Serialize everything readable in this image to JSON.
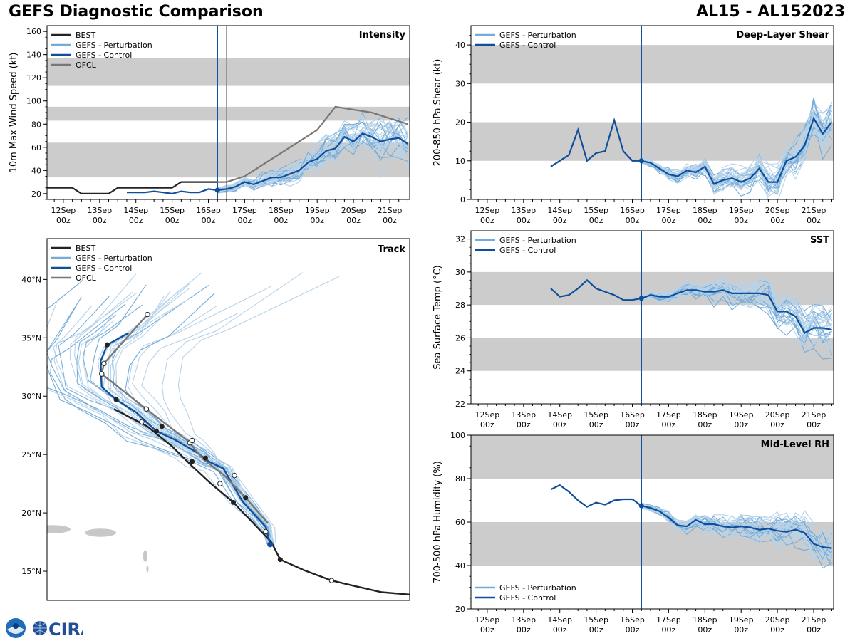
{
  "title": "GEFS Diagnostic Comparison",
  "storm": "AL15 - AL152023",
  "logo_text": "CIRA",
  "colors": {
    "best": "#222222",
    "perturbation": "#74acd9",
    "perturbation_light": "#b7d3ea",
    "control": "#0f4f9a",
    "ofcl": "#777777",
    "band": "#cccccc",
    "analysis_line": "#0f4f9a",
    "ofcl_line": "#888888"
  },
  "time_axis": {
    "labels": [
      "12Sep\n00z",
      "13Sep\n00z",
      "14Sep\n00z",
      "15Sep\n00z",
      "16Sep\n00z",
      "17Sep\n00z",
      "18Sep\n00z",
      "19Sep\n00z",
      "20Sep\n00z",
      "21Sep\n00z"
    ],
    "range_days": [
      11.55,
      21.55
    ],
    "analysis_time": 16.25
  },
  "chart_data": [
    {
      "id": "intensity",
      "type": "line",
      "panel_title": "Intensity",
      "ylabel": "10m Max Wind Speed (kt)",
      "ylim": [
        15,
        165
      ],
      "yticks": [
        20,
        40,
        60,
        80,
        100,
        120,
        140,
        160
      ],
      "bands": [
        [
          34,
          64
        ],
        [
          83,
          95
        ],
        [
          113,
          137
        ]
      ],
      "ofcl_time_line": 16.5,
      "legend": [
        "BEST",
        "GEFS - Perturbation",
        "GEFS - Control",
        "OFCL"
      ],
      "series": [
        {
          "name": "BEST",
          "t": [
            11.55,
            12,
            12.25,
            12.5,
            12.75,
            13,
            13.25,
            13.5,
            13.75,
            14,
            14.25,
            14.5,
            14.75,
            15,
            15.25,
            15.5,
            15.75,
            16,
            16.25
          ],
          "v": [
            25,
            25,
            25,
            20,
            20,
            20,
            20,
            25,
            25,
            25,
            25,
            25,
            25,
            25,
            30,
            30,
            30,
            30,
            30
          ]
        },
        {
          "name": "GEFS - Control",
          "t": [
            13.75,
            14,
            14.25,
            14.5,
            14.75,
            15,
            15.25,
            15.5,
            15.75,
            16,
            16.25,
            16.5,
            16.75,
            17,
            17.25,
            17.5,
            17.75,
            18,
            18.25,
            18.5,
            18.75,
            19,
            19.25,
            19.5,
            19.75,
            20,
            20.25,
            20.5,
            20.75,
            21,
            21.25,
            21.5
          ],
          "v": [
            21,
            21,
            21,
            22,
            21,
            20,
            22,
            21,
            21,
            24,
            23,
            24,
            26,
            30,
            28,
            31,
            34,
            34,
            37,
            40,
            47,
            50,
            57,
            59,
            69,
            65,
            72,
            69,
            65,
            67,
            68,
            63
          ]
        },
        {
          "name": "OFCL",
          "t": [
            16.25,
            16.5,
            17,
            17.5,
            18,
            18.5,
            19,
            19.5,
            20.5,
            21.5
          ],
          "v": [
            30,
            30,
            35,
            45,
            55,
            65,
            75,
            95,
            90,
            80
          ]
        }
      ]
    },
    {
      "id": "shear",
      "type": "line",
      "panel_title": "Deep-Layer Shear",
      "ylabel": "200-850 hPa Shear (kt)",
      "ylim": [
        0,
        45
      ],
      "yticks": [
        0,
        10,
        20,
        30,
        40
      ],
      "bands": [
        [
          10,
          20
        ],
        [
          30,
          40
        ]
      ],
      "legend": [
        "GEFS - Perturbation",
        "GEFS - Control"
      ],
      "series": [
        {
          "name": "GEFS - Control",
          "t": [
            13.75,
            14,
            14.25,
            14.5,
            14.75,
            15,
            15.25,
            15.5,
            15.75,
            16,
            16.25,
            16.5,
            16.75,
            17,
            17.25,
            17.5,
            17.75,
            18,
            18.25,
            18.5,
            18.75,
            19,
            19.25,
            19.5,
            19.75,
            20,
            20.25,
            20.5,
            20.75,
            21,
            21.25,
            21.5
          ],
          "v": [
            8.5,
            10,
            11.5,
            18,
            10,
            12,
            12.5,
            20.5,
            12.5,
            10,
            10,
            9.5,
            8,
            6.5,
            6,
            7.5,
            7,
            8.5,
            4,
            5,
            5.5,
            4.5,
            5.5,
            8,
            4.5,
            4.5,
            10,
            11,
            14,
            21,
            17,
            20
          ]
        }
      ]
    },
    {
      "id": "sst",
      "type": "line",
      "panel_title": "SST",
      "ylabel": "Sea Surface Temp (°C)",
      "ylim": [
        22,
        32.5
      ],
      "yticks": [
        22,
        24,
        26,
        28,
        30,
        32
      ],
      "bands": [
        [
          24,
          26
        ],
        [
          28,
          30
        ]
      ],
      "legend": [
        "GEFS - Perturbation",
        "GEFS - Control"
      ],
      "series": [
        {
          "name": "GEFS - Control",
          "t": [
            13.75,
            14,
            14.25,
            14.5,
            14.75,
            15,
            15.25,
            15.5,
            15.75,
            16,
            16.25,
            16.5,
            16.75,
            17,
            17.25,
            17.5,
            17.75,
            18,
            18.25,
            18.5,
            18.75,
            19,
            19.25,
            19.5,
            19.75,
            20,
            20.25,
            20.5,
            20.75,
            21,
            21.25,
            21.5
          ],
          "v": [
            29,
            28.5,
            28.6,
            29,
            29.5,
            29,
            28.8,
            28.6,
            28.3,
            28.3,
            28.4,
            28.6,
            28.5,
            28.5,
            28.7,
            28.9,
            28.9,
            28.8,
            28.8,
            28.9,
            28.7,
            28.7,
            28.7,
            28.7,
            28.6,
            27.6,
            27.6,
            27.3,
            26.3,
            26.6,
            26.6,
            26.5
          ]
        }
      ]
    },
    {
      "id": "rh",
      "type": "line",
      "panel_title": "Mid-Level RH",
      "ylabel": "700-500 hPa Humidity (%)",
      "ylim": [
        20,
        100
      ],
      "yticks": [
        20,
        40,
        60,
        80,
        100
      ],
      "bands": [
        [
          40,
          60
        ],
        [
          80,
          100
        ]
      ],
      "legend": [
        "GEFS - Perturbation",
        "GEFS - Control"
      ],
      "series": [
        {
          "name": "GEFS - Control",
          "t": [
            13.75,
            14,
            14.25,
            14.5,
            14.75,
            15,
            15.25,
            15.5,
            15.75,
            16,
            16.25,
            16.5,
            16.75,
            17,
            17.25,
            17.5,
            17.75,
            18,
            18.25,
            18.5,
            18.75,
            19,
            19.25,
            19.5,
            19.75,
            20,
            20.25,
            20.5,
            20.75,
            21,
            21.25,
            21.5
          ],
          "v": [
            75,
            77,
            74,
            70,
            67,
            69,
            68,
            70,
            70.5,
            70.5,
            67.5,
            66.5,
            65,
            62,
            58.5,
            58,
            61,
            59,
            59,
            58,
            57.5,
            58,
            57.5,
            56.5,
            57,
            56,
            55.5,
            56.5,
            55,
            50,
            48.5,
            48
          ]
        }
      ]
    },
    {
      "id": "track",
      "type": "line",
      "panel_title": "Track",
      "lat_range": [
        12.5,
        43.5
      ],
      "lon_range": [
        -78.0,
        -45.5
      ],
      "lat_ticks": [
        15,
        20,
        25,
        30,
        35,
        40
      ],
      "lat_labels": [
        "15°N",
        "20°N",
        "25°N",
        "30°N",
        "35°N",
        "40°N"
      ],
      "legend": [
        "BEST",
        "GEFS - Perturbation",
        "GEFS - Control",
        "OFCL"
      ],
      "series": [
        {
          "name": "BEST",
          "lat": [
            13.0,
            13.2,
            13.7,
            14.2,
            15.1,
            16.0,
            17.5,
            19.1,
            20.9,
            22.5,
            24.0,
            25.7,
            27.4,
            28.9
          ],
          "lon": [
            -45.5,
            -48.0,
            -50.3,
            -52.5,
            -55.0,
            -57.1,
            -57.9,
            -59.5,
            -61.3,
            -63.3,
            -65.0,
            -66.8,
            -69.0,
            -72.0
          ]
        },
        {
          "name": "GEFS - Control",
          "lat": [
            17.3,
            18.8,
            21.0,
            23.8,
            24.4,
            25.2,
            26.3,
            27.0,
            28.6,
            29.7,
            30.8,
            33.0,
            34.4,
            35.4
          ],
          "lon": [
            -58.0,
            -58.4,
            -60.5,
            -62.2,
            -63.5,
            -64.6,
            -66.6,
            -68.2,
            -70.0,
            -71.8,
            -73.1,
            -73.2,
            -72.6,
            -70.7
          ]
        },
        {
          "name": "OFCL",
          "lat": [
            19.1,
            21.3,
            23.2,
            24.6,
            26.2,
            27.5,
            28.9,
            31.9,
            32.8,
            37.0
          ],
          "lon": [
            -58.2,
            -60.2,
            -62.1,
            -64.0,
            -65.4,
            -67.2,
            -69.1,
            -73.1,
            -72.9,
            -69.0
          ]
        }
      ],
      "best_filled_points": [
        [
          16.0,
          -57.1
        ],
        [
          20.9,
          -61.3
        ],
        [
          24.4,
          -65.0
        ],
        [
          27.0,
          -68.2
        ],
        [
          29.7,
          -71.8
        ],
        [
          34.4,
          -72.6
        ],
        [
          21.3,
          -60.2
        ],
        [
          24.7,
          -63.8
        ],
        [
          27.4,
          -67.7
        ]
      ],
      "best_open_points": [
        [
          14.2,
          -52.5
        ],
        [
          18.4,
          -58.4
        ],
        [
          22.5,
          -62.5
        ],
        [
          26.0,
          -65.2
        ],
        [
          27.8,
          -69.5
        ],
        [
          31.9,
          -73.1
        ],
        [
          32.8,
          -72.9
        ],
        [
          37.0,
          -69.0
        ],
        [
          23.2,
          -61.2
        ],
        [
          26.2,
          -65.0
        ],
        [
          28.9,
          -69.1
        ]
      ]
    }
  ]
}
